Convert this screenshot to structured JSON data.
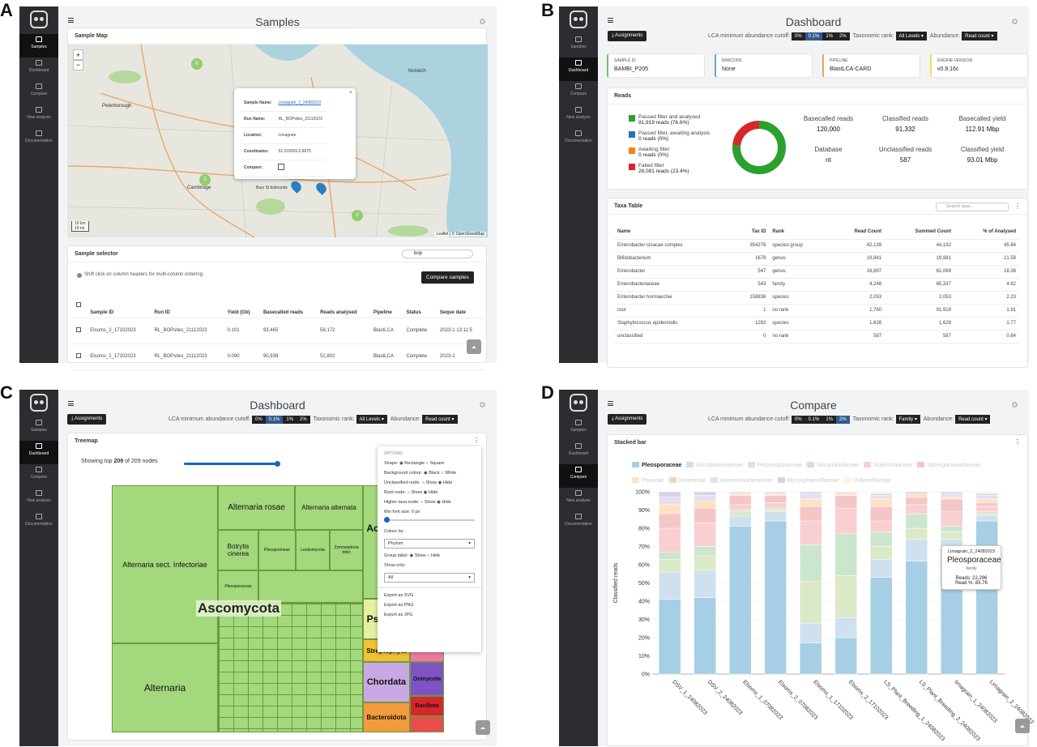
{
  "panelA": {
    "label": "A",
    "title": "Samples",
    "nav": [
      "Samples",
      "Dashboard",
      "Compare",
      "New analysis",
      "Documentation"
    ],
    "map_card": "Sample Map",
    "map_labels": [
      "Peterborough",
      "Cambridge",
      "Bury St Edmunds",
      "Norwich"
    ],
    "scale": [
      "10 km",
      "10 mi"
    ],
    "attribution": "Leaflet | © OpenStreetMap",
    "popup": {
      "sample_name_label": "Sample Name:",
      "sample_name": "Limagrain_2_24082023",
      "run_name_label": "Run Name:",
      "run_name": "RL_BOPsites_21112023",
      "location_label": "Location:",
      "location": "Limagrain",
      "coords_label": "Coordinates:",
      "coords": "52.203056,0.8875",
      "compare_label": "Compare:"
    },
    "cluster_counts": [
      "6",
      "3",
      "2"
    ],
    "selector": "Sample selector",
    "search": "bop",
    "hint": "Shift click on column headers for multi-column ordering.",
    "compare_btn": "Compare samples",
    "columns": [
      "Sample ID",
      "Run ID",
      "Yield (Gb)",
      "Basecalled reads",
      "Reads analysed",
      "Pipeline",
      "Status",
      "Seque date"
    ],
    "rows": [
      [
        "Elsoms_2_17102023",
        "RL_BOPsites_21112023",
        "0.101",
        "93,465",
        "58,172",
        "BlastLCA",
        "Complete",
        "2023-1 13:11:5"
      ],
      [
        "Elsoms_1_17102023",
        "RL_BOPsites_21112023",
        "0.090",
        "90,938",
        "52,802",
        "BlastLCA",
        "Complete",
        "2023-1"
      ]
    ]
  },
  "panelB": {
    "label": "B",
    "title": "Dashboard",
    "nav": [
      "Samples",
      "Dashboard",
      "Compare",
      "New analysis",
      "Documentation"
    ],
    "assign": "Assignments",
    "lca": "LCA minimum abundance cutoff:",
    "cutoffs": [
      "0%",
      "0.1%",
      "1%",
      "2%"
    ],
    "rank_label": "Taxonomic rank:",
    "rank": "All Levels",
    "abund_label": "Abundance:",
    "abund": "Read count",
    "info": [
      {
        "k": "SAMPLE ID",
        "v": "BAMBI_P205"
      },
      {
        "k": "BARCODE",
        "v": "None"
      },
      {
        "k": "PIPELINE",
        "v": "BlastLCA-CARD"
      },
      {
        "k": "ENGINE VERSION",
        "v": "v0.9.16c"
      }
    ],
    "reads_title": "Reads",
    "legend": [
      {
        "l": "Passed filter and analysed",
        "v": "91,919 reads (76.6%)",
        "c": "#2ca02c"
      },
      {
        "l": "Passed filter, awaiting analysis",
        "v": "0 reads (0%)",
        "c": "#1f77b4"
      },
      {
        "l": "Awaiting filter",
        "v": "0 reads (0%)",
        "c": "#ff7f0e"
      },
      {
        "l": "Failed filter",
        "v": "28,081 reads (23.4%)",
        "c": "#d62728"
      }
    ],
    "donut": [
      76.6,
      23.4
    ],
    "stats": [
      {
        "k": "Basecalled reads",
        "v": "120,000"
      },
      {
        "k": "Classified reads",
        "v": "91,332"
      },
      {
        "k": "Basecalled yield",
        "v": "112.91 Mbp"
      },
      {
        "k": "Database",
        "v": "nt"
      },
      {
        "k": "Unclassified reads",
        "v": "587"
      },
      {
        "k": "Classified yield",
        "v": "93.01 Mbp"
      }
    ],
    "taxa_title": "Taxa Table",
    "taxa_search": "Search taxa...",
    "taxa_cols": [
      "Name",
      "Tax ID",
      "Rank",
      "Read Count",
      "Summed Count",
      "% of Analysed"
    ],
    "taxa": [
      [
        "Enterobacter cloacae complex",
        "354276",
        "species group",
        "42,139",
        "44,192",
        "45.84"
      ],
      [
        "Bifidobacterium",
        "1678",
        "genus",
        "19,841",
        "19,981",
        "21.59"
      ],
      [
        "Enterobacter",
        "547",
        "genus",
        "16,897",
        "61,089",
        "18.38"
      ],
      [
        "Enterobacteriaceae",
        "543",
        "family",
        "4,248",
        "65,337",
        "4.62"
      ],
      [
        "Enterobacter hormaechei",
        "158836",
        "species",
        "2,053",
        "2,053",
        "2.23"
      ],
      [
        "root",
        "1",
        "no rank",
        "1,760",
        "91,919",
        "1.91"
      ],
      [
        "Staphylococcus epidermidis",
        "1282",
        "species",
        "1,628",
        "1,628",
        "1.77"
      ],
      [
        "unclassified",
        "0",
        "no rank",
        "587",
        "587",
        "0.64"
      ]
    ]
  },
  "panelC": {
    "label": "C",
    "title": "Dashboard",
    "nav": [
      "Samples",
      "Dashboard",
      "Compare",
      "New analysis",
      "Documentation"
    ],
    "assign": "Assignments",
    "lca": "LCA minimum abundance cutoff:",
    "cutoffs": [
      "0%",
      "0.1%",
      "1%",
      "2%"
    ],
    "rank_label": "Taxonomic rank:",
    "rank": "All Levels",
    "abund_label": "Abundance:",
    "abund": "Read count",
    "treemap": "Treemap",
    "showing_pre": "Showing top",
    "showing_n": "209",
    "showing_of": "of 209 nodes",
    "nodes": [
      "Alternaria sect. Infectoriae",
      "Alternaria rosae",
      "Alternaria alternata",
      "Botrytis cinerea",
      "Pleosporineae",
      "Leotiomycota",
      "Zymoseptoria tritici",
      "Pleosporaceae",
      "Ascomycota",
      "Alternaria",
      "Streptophyta",
      "Chordata",
      "Oomycota",
      "Bacteroidota",
      "Bacillota",
      "Ps",
      "Ac"
    ],
    "options": {
      "title": "OPTIONS:",
      "shape": "Shape:",
      "rect": "Rectangle",
      "square": "Square",
      "bg": "Background colour:",
      "black": "Black",
      "white": "White",
      "uncl": "Unclassified node:",
      "show": "Show",
      "hide": "Hide",
      "root": "Root node:",
      "higher": "Higher taxa node:",
      "minfont": "Min font size:",
      "minfont_v": "0 px",
      "colour_by": "Colour by:",
      "phylum": "Phylum",
      "group": "Group label:",
      "show_only": "Show only:",
      "all": "All",
      "svg": "Export as SVG",
      "png": "Export as PNG",
      "jpg": "Export as JPG"
    }
  },
  "panelD": {
    "label": "D",
    "title": "Compare",
    "nav": [
      "Samples",
      "Dashboard",
      "Compare",
      "New analysis",
      "Documentation"
    ],
    "assign": "Assignments",
    "lca": "LCA minimum abundance cutoff:",
    "cutoffs": [
      "0%",
      "0.1%",
      "1%",
      "2%"
    ],
    "rank_label": "Taxonomic rank:",
    "rank": "Family",
    "abund_label": "Abundance:",
    "abund": "Read count",
    "card": "Stacked bar",
    "ylabel": "Classified reads",
    "tooltip": {
      "sample": "Limagrain_2_24082023",
      "name": "Pleosporaceae",
      "rank": "family",
      "reads": "Reads: 22,296",
      "pct": "Read %: 83.76"
    }
  },
  "chart_data": {
    "type": "bar",
    "stacked": true,
    "ylabel": "Classified reads",
    "ylim": [
      0,
      100
    ],
    "yticks": [
      "0%",
      "10%",
      "20%",
      "30%",
      "40%",
      "50%",
      "60%",
      "70%",
      "80%",
      "90%",
      "100%"
    ],
    "categories": [
      "DSV_1_24082023",
      "DSV_2_24082023",
      "Elsoms_1_07082023",
      "Elsoms_2_07082023",
      "Elsoms_1_17102023",
      "Elsoms_2_17102023",
      "LS_Plant_Breeding_1_24082023",
      "LS_Plant_Breeding_2_24082023",
      "limagrain_1_24082023",
      "Limagrain_2_24082023"
    ],
    "series": [
      {
        "name": "Pleosporaceae",
        "color": "#a6cfe5",
        "values": [
          41,
          42,
          81,
          84,
          17,
          20,
          53,
          62,
          70,
          84
        ]
      },
      {
        "name": "Microbacteriaceae",
        "color": "#cfe0ee",
        "values": [
          15,
          15,
          6,
          5,
          11,
          11,
          10,
          12,
          4,
          3
        ]
      },
      {
        "name": "Peronosporaceae",
        "color": "#dbe9c7",
        "values": [
          7,
          8,
          2,
          1,
          23,
          23,
          7,
          6,
          4,
          1
        ]
      },
      {
        "name": "Nocardioidaceae",
        "color": "#cbe6cc",
        "values": [
          4,
          5,
          1,
          1,
          20,
          23,
          8,
          8,
          3,
          1
        ]
      },
      {
        "name": "Sclerotiniaceae",
        "color": "#f9cfd2",
        "values": [
          13,
          13,
          3,
          3,
          13,
          14,
          6,
          5,
          8,
          3
        ]
      },
      {
        "name": "Sphingomonadaceae",
        "color": "#f4c6c6",
        "values": [
          8,
          8,
          5,
          4,
          8,
          7,
          8,
          4,
          7,
          2
        ]
      },
      {
        "name": "Poaceae",
        "color": "#fde2c4",
        "values": [
          5,
          4,
          1,
          1,
          4,
          1,
          4,
          2,
          1,
          2
        ]
      },
      {
        "name": "Hominidae",
        "color": "#fdd2b5",
        "values": [
          0,
          0,
          0,
          0,
          0,
          0,
          0,
          0,
          0,
          0
        ]
      },
      {
        "name": "Hymenobacteraceae",
        "color": "#e5dff0",
        "values": [
          4,
          3,
          1,
          1,
          3,
          1,
          2,
          0,
          2,
          2
        ]
      },
      {
        "name": "Mycosphaerellaceae",
        "color": "#d9d1e8",
        "values": [
          3,
          2,
          0,
          0,
          1,
          0,
          1,
          1,
          1,
          1
        ]
      },
      {
        "name": "Didymellaceae",
        "color": "#fcf4cf",
        "values": [
          0,
          0,
          0,
          0,
          0,
          0,
          1,
          0,
          0,
          1
        ]
      }
    ]
  }
}
